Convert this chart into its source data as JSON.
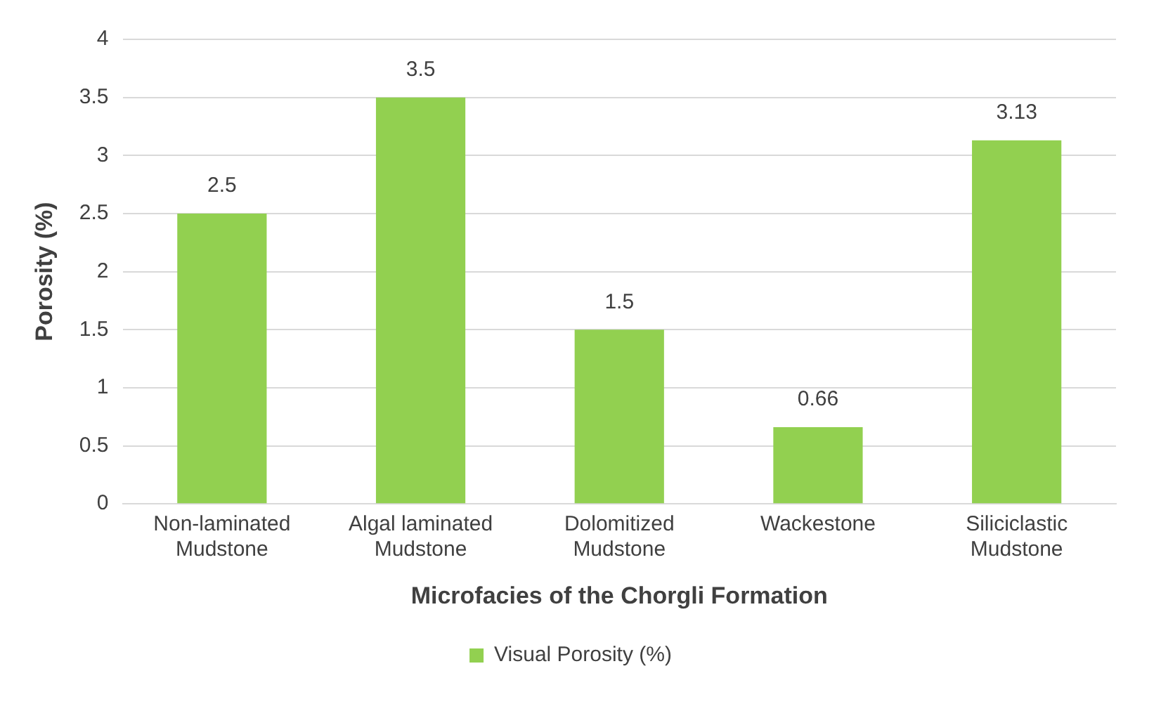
{
  "chart_data": {
    "type": "bar",
    "xlabel": "Microfacies of the Chorgli Formation",
    "ylabel": "Porosity (%)",
    "categories": [
      "Non-laminated Mudstone",
      "Algal laminated Mudstone",
      "Dolomitized Mudstone",
      "Wackestone",
      "Siliciclastic Mudstone"
    ],
    "series": [
      {
        "name": "Visual Porosity (%)",
        "color": "#92d050",
        "values": [
          2.5,
          3.5,
          1.5,
          0.66,
          3.13
        ]
      }
    ],
    "ylim": [
      0,
      4
    ],
    "yticks": [
      0,
      0.5,
      1,
      1.5,
      2,
      2.5,
      3,
      3.5,
      4
    ],
    "grid": "y",
    "legend": "bottom",
    "data_labels": true
  }
}
